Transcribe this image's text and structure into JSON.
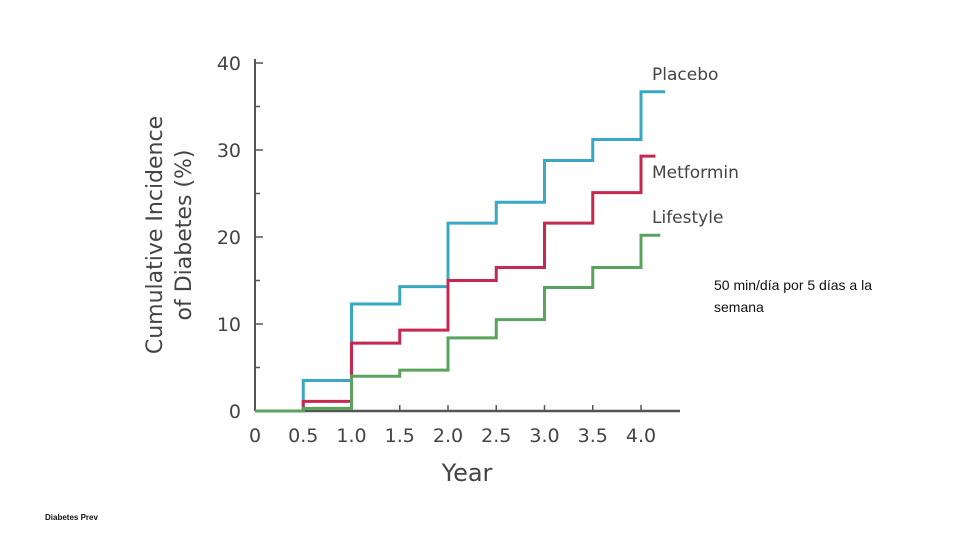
{
  "chart_data": {
    "type": "line",
    "step": true,
    "xlabel": "Year",
    "ylabel_lines": [
      "Cumulative Incidence",
      "of Diabetes (%)"
    ],
    "xlim": [
      0,
      4.4
    ],
    "ylim": [
      0,
      40
    ],
    "x_ticks": [
      "0",
      "0.5",
      "1.0",
      "1.5",
      "2.0",
      "2.5",
      "3.0",
      "3.5",
      "4.0"
    ],
    "y_ticks": [
      "0",
      "10",
      "20",
      "30",
      "40"
    ],
    "series": [
      {
        "name": "Placebo",
        "color": "#3aa7c4",
        "points": [
          [
            0,
            0
          ],
          [
            0.5,
            3.5
          ],
          [
            1.0,
            12.3
          ],
          [
            1.5,
            14.3
          ],
          [
            2.0,
            21.6
          ],
          [
            2.5,
            24.0
          ],
          [
            3.0,
            28.8
          ],
          [
            3.5,
            31.2
          ],
          [
            4.0,
            36.7
          ],
          [
            4.25,
            36.7
          ]
        ]
      },
      {
        "name": "Metformin",
        "color": "#c7284f",
        "points": [
          [
            0,
            0
          ],
          [
            0.5,
            1.1
          ],
          [
            1.0,
            7.8
          ],
          [
            1.5,
            9.3
          ],
          [
            2.0,
            15.0
          ],
          [
            2.5,
            16.5
          ],
          [
            3.0,
            21.6
          ],
          [
            3.5,
            25.1
          ],
          [
            4.0,
            29.3
          ],
          [
            4.15,
            29.3
          ]
        ]
      },
      {
        "name": "Lifestyle",
        "color": "#5aa35e",
        "points": [
          [
            0,
            0
          ],
          [
            0.5,
            0.3
          ],
          [
            1.0,
            4.0
          ],
          [
            1.5,
            4.7
          ],
          [
            2.0,
            8.4
          ],
          [
            2.5,
            10.5
          ],
          [
            3.0,
            14.2
          ],
          [
            3.5,
            16.5
          ],
          [
            4.0,
            20.2
          ],
          [
            4.2,
            20.2
          ]
        ]
      }
    ]
  },
  "annotation": "50 min/día por 5 días a la semana",
  "footer": "Diabetes Prev"
}
